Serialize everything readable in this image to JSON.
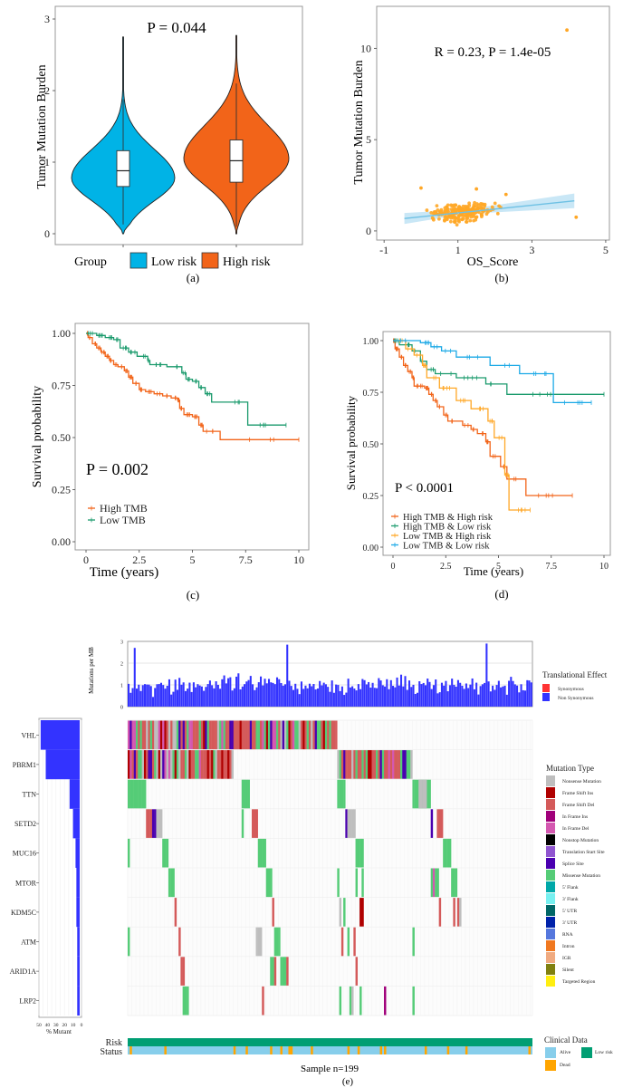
{
  "chart_data": [
    {
      "id": "a",
      "type": "violin",
      "panel_label": "(a)",
      "annotation": "P = 0.044",
      "ylabel": "Tumor Mutation Burden",
      "xlabel": "",
      "ylim": [
        0,
        3
      ],
      "yticks": [
        "0",
        "1",
        "2",
        "3"
      ],
      "legend_title": "Group",
      "legend_position": "bottom",
      "series": [
        {
          "name": "Low risk",
          "color": "#00B3E6",
          "median": 0.88,
          "q1": 0.66,
          "q3": 1.16,
          "whisker_low": 0.13,
          "whisker_high": 1.88,
          "min": 0.0,
          "max": 2.75,
          "mode": 0.78
        },
        {
          "name": "High risk",
          "color": "#F26419",
          "median": 1.02,
          "q1": 0.72,
          "q3": 1.31,
          "whisker_low": 0.1,
          "whisker_high": 2.1,
          "min": 0.0,
          "max": 2.77,
          "mode": 1.05
        }
      ]
    },
    {
      "id": "b",
      "type": "scatter",
      "panel_label": "(b)",
      "annotation": "R = 0.23,  P = 1.4e-05",
      "xlabel": "OS_Score",
      "ylabel": "Tumor Mutation Burden",
      "xlim": [
        -1.2,
        5.1
      ],
      "ylim": [
        -0.5,
        12.3
      ],
      "xticks": [
        "-1",
        "1",
        "3",
        "5"
      ],
      "yticks": [
        "0",
        "5",
        "10"
      ],
      "point_color": "#FFA726",
      "fit_color": "#6EC1E4",
      "fit_line": {
        "x": [
          -0.45,
          4.15
        ],
        "y": [
          0.68,
          1.65
        ]
      },
      "outliers": [
        {
          "x": 3.95,
          "y": 11.0
        },
        {
          "x": 4.2,
          "y": 0.75
        },
        {
          "x": 0.0,
          "y": 2.35
        },
        {
          "x": 1.5,
          "y": 2.3
        },
        {
          "x": 2.3,
          "y": 2.0
        }
      ],
      "n_points": 220
    },
    {
      "id": "c",
      "type": "line",
      "subtype": "kaplan-meier",
      "panel_label": "(c)",
      "annotation": "P = 0.002",
      "xlabel": "Time (years)",
      "ylabel": "Survival probability",
      "xlim": [
        0,
        10
      ],
      "ylim": [
        0,
        1
      ],
      "xticks": [
        "0",
        "2.5",
        "5",
        "7.5",
        "10"
      ],
      "yticks": [
        "0.00",
        "0.25",
        "0.50",
        "0.75",
        "1.00"
      ],
      "legend_position": "bottom-left",
      "series": [
        {
          "name": "High TMB",
          "color": "#F26419",
          "x": [
            0,
            0.1,
            0.3,
            0.5,
            0.7,
            0.9,
            1.1,
            1.3,
            1.5,
            1.8,
            2.0,
            2.2,
            2.5,
            2.8,
            3.2,
            3.6,
            4.0,
            4.3,
            4.4,
            4.6,
            5.0,
            5.3,
            5.5,
            6.3,
            10.0
          ],
          "y": [
            1.0,
            0.98,
            0.95,
            0.93,
            0.91,
            0.89,
            0.87,
            0.85,
            0.84,
            0.82,
            0.79,
            0.76,
            0.73,
            0.72,
            0.71,
            0.7,
            0.69,
            0.68,
            0.64,
            0.61,
            0.6,
            0.56,
            0.53,
            0.49,
            0.49
          ]
        },
        {
          "name": "Low TMB",
          "color": "#1A9A6C",
          "x": [
            0,
            0.5,
            0.9,
            1.3,
            1.6,
            2.0,
            2.4,
            2.9,
            3.0,
            3.8,
            4.5,
            4.7,
            5.0,
            5.3,
            5.6,
            5.9,
            7.6,
            9.4
          ],
          "y": [
            1.0,
            0.99,
            0.98,
            0.97,
            0.93,
            0.91,
            0.89,
            0.87,
            0.85,
            0.84,
            0.81,
            0.78,
            0.77,
            0.74,
            0.71,
            0.67,
            0.56,
            0.56
          ]
        }
      ]
    },
    {
      "id": "d",
      "type": "line",
      "subtype": "kaplan-meier",
      "panel_label": "(d)",
      "annotation": "P < 0.0001",
      "xlabel": "Time (years)",
      "ylabel": "Survival probability",
      "xlim": [
        0,
        10
      ],
      "ylim": [
        0,
        1
      ],
      "xticks": [
        "0",
        "2.5",
        "5",
        "7.5",
        "10"
      ],
      "yticks": [
        "0.00",
        "0.25",
        "0.50",
        "0.75",
        "1.00"
      ],
      "legend_position": "bottom-left",
      "series": [
        {
          "name": "High TMB & High risk",
          "color": "#F26419",
          "x": [
            0,
            0.1,
            0.3,
            0.5,
            0.7,
            0.9,
            1.0,
            1.5,
            1.7,
            1.9,
            2.1,
            2.4,
            2.6,
            3.3,
            3.7,
            4.0,
            4.4,
            4.6,
            5.1,
            5.4,
            6.3,
            8.5
          ],
          "y": [
            1.0,
            0.96,
            0.92,
            0.88,
            0.85,
            0.82,
            0.78,
            0.77,
            0.74,
            0.71,
            0.68,
            0.64,
            0.61,
            0.59,
            0.57,
            0.55,
            0.51,
            0.44,
            0.39,
            0.33,
            0.25,
            0.25
          ]
        },
        {
          "name": "High TMB & Low risk",
          "color": "#1A9A6C",
          "x": [
            0,
            0.3,
            0.9,
            1.3,
            1.6,
            2.0,
            3.0,
            4.4,
            5.4,
            10.0
          ],
          "y": [
            1.0,
            0.98,
            0.95,
            0.9,
            0.86,
            0.84,
            0.82,
            0.79,
            0.74,
            0.74
          ]
        },
        {
          "name": "Low TMB & High risk",
          "color": "#FFA726",
          "x": [
            0,
            0.6,
            1.0,
            1.4,
            1.6,
            2.2,
            3.0,
            3.7,
            4.5,
            4.8,
            5.3,
            5.5,
            6.5
          ],
          "y": [
            1.0,
            0.96,
            0.93,
            0.88,
            0.82,
            0.77,
            0.71,
            0.67,
            0.61,
            0.53,
            0.35,
            0.18,
            0.18
          ]
        },
        {
          "name": "Low TMB & Low risk",
          "color": "#1CA9E6",
          "x": [
            0,
            1.3,
            1.8,
            2.3,
            3.0,
            4.6,
            6.0,
            7.6,
            9.4
          ],
          "y": [
            1.0,
            0.99,
            0.97,
            0.95,
            0.92,
            0.88,
            0.84,
            0.7,
            0.7
          ]
        }
      ]
    },
    {
      "id": "e",
      "type": "heatmap",
      "subtype": "oncoplot",
      "panel_label": "(e)",
      "sample_label": "Sample n=199",
      "n_samples": 199,
      "tmb_bar": {
        "ylabel": "Mutations per MB",
        "ylim": [
          0,
          3
        ],
        "yticks": [
          "0",
          "1",
          "2",
          "3"
        ],
        "color": "#3333FF",
        "peaks": [
          {
            "sample": 3,
            "value": 2.7
          },
          {
            "sample": 78,
            "value": 2.85
          },
          {
            "sample": 176,
            "value": 2.9
          }
        ]
      },
      "genes": [
        "VHL",
        "PBRM1",
        "TTN",
        "SETD2",
        "MUC16",
        "MTOR",
        "KDM5C",
        "ATM",
        "ARID1A",
        "LRP2"
      ],
      "percent_mutant": [
        48,
        42,
        14,
        10,
        7,
        6,
        6,
        5,
        5,
        5
      ],
      "percent_axis": {
        "label": "% Mutant",
        "ticks": [
          "50",
          "40",
          "30",
          "20",
          "10",
          "0"
        ]
      },
      "clinical_tracks": [
        "Risk",
        "Status"
      ],
      "translational_effect": {
        "title": "Translational Effect",
        "items": [
          {
            "label": "Synonymous",
            "color": "#FF3333"
          },
          {
            "label": "Non Synonymous",
            "color": "#3333FF"
          }
        ]
      },
      "mutation_type": {
        "title": "Mutation Type",
        "items": [
          {
            "label": "Nonsense Mutation",
            "color": "#BEBEBE"
          },
          {
            "label": "Frame Shift Ins",
            "color": "#B00000"
          },
          {
            "label": "Frame Shift Del",
            "color": "#D45A5A"
          },
          {
            "label": "In Frame Ins",
            "color": "#A0007A"
          },
          {
            "label": "In Frame Del",
            "color": "#D458B0"
          },
          {
            "label": "Nonstop Mutation",
            "color": "#000000"
          },
          {
            "label": "Translation Start Site",
            "color": "#9055D0"
          },
          {
            "label": "Splice Site",
            "color": "#4A00B0"
          },
          {
            "label": "Missense Mutation",
            "color": "#55CC77"
          },
          {
            "label": "5' Flank",
            "color": "#00A8A8"
          },
          {
            "label": "3' Flank",
            "color": "#77F0F0"
          },
          {
            "label": "5' UTR",
            "color": "#006666"
          },
          {
            "label": "3' UTR",
            "color": "#0022AA"
          },
          {
            "label": "RNA",
            "color": "#5577DD"
          },
          {
            "label": "Intron",
            "color": "#F07820"
          },
          {
            "label": "IGR",
            "color": "#F0AA80"
          },
          {
            "label": "Silent",
            "color": "#808010"
          },
          {
            "label": "Targeted Region",
            "color": "#FFEE11"
          }
        ]
      },
      "clinical_data": {
        "title": "Clinical Data",
        "items": [
          {
            "label": "Alive",
            "color": "#87CEEB"
          },
          {
            "label": "Low risk",
            "color": "#009E73"
          },
          {
            "label": "Dead",
            "color": "#FFA500"
          }
        ]
      },
      "dead_samples": [
        1,
        18,
        52,
        58,
        70,
        75,
        79,
        80,
        90,
        108,
        113,
        124,
        126,
        146,
        157,
        166,
        197
      ]
    }
  ]
}
